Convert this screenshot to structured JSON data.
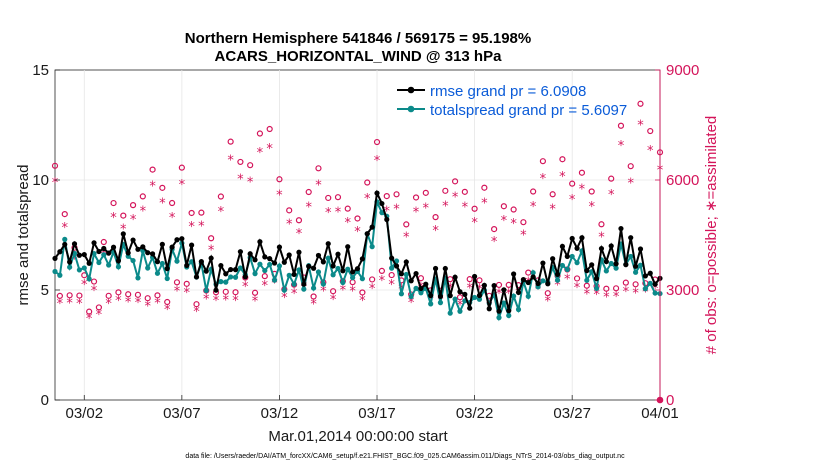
{
  "chart_data": {
    "type": "line",
    "title_line1": "Northern Hemisphere 541846 / 569175 = 95.198%",
    "title_line2": "ACARS_HORIZONTAL_WIND @ 313 hPa",
    "xlabel": "Mar.01,2014 00:00:00 start",
    "ylabel_left": "rmse and totalspread",
    "ylabel_right": "# of obs: o=possible; ∗=assimilated",
    "footnote": "data file: /Users/raeder/DAI/ATM_forcXX/CAM6_setup/f.e21.FHIST_BGC.f09_025.CAM6assim.011/Diags_NTrS_2014-03/obs_diag_output.nc",
    "xlim": [
      0.5,
      31.5
    ],
    "ylim_left": [
      0,
      15
    ],
    "ylim_right": [
      0,
      9000
    ],
    "x_tick_labels": [
      "03/02",
      "03/07",
      "03/12",
      "03/17",
      "03/22",
      "03/27",
      "04/01"
    ],
    "x_tick_values": [
      2,
      7,
      12,
      17,
      22,
      27,
      32
    ],
    "y_left_ticks": [
      "0",
      "5",
      "10",
      "15"
    ],
    "y_left_tick_values": [
      0,
      5,
      10,
      15
    ],
    "y_right_ticks": [
      "0",
      "3000",
      "6000",
      "9000"
    ],
    "y_right_tick_values": [
      0,
      3000,
      6000,
      9000
    ],
    "colors": {
      "rmse": "#000000",
      "spread": "#0b8a8a",
      "obs": "#d4145a",
      "legend_text": "#0a5bd8"
    },
    "series": [
      {
        "name": "rmse grand pr = 6.0908",
        "color": "#000000",
        "anchors_x": [
          0.5,
          1.0,
          2.0,
          3.0,
          4.0,
          5.0,
          6.0,
          6.8,
          7.5,
          8.0,
          9.0,
          10.0,
          11.0,
          12.0,
          13.0,
          14.0,
          15.0,
          16.0,
          16.8,
          17.2,
          17.8,
          18.5,
          19.5,
          20.5,
          21.5,
          22.5,
          23.5,
          24.5,
          25.5,
          26.5,
          27.0,
          28.0,
          28.8,
          29.5,
          30.5,
          31.0,
          31.5
        ],
        "anchors_y": [
          6.3,
          7.1,
          6.4,
          6.8,
          7.2,
          6.7,
          6.3,
          7.5,
          6.3,
          6.0,
          5.7,
          6.1,
          6.6,
          6.3,
          6.0,
          6.2,
          6.5,
          6.0,
          8.4,
          9.3,
          6.4,
          5.6,
          5.2,
          5.2,
          4.9,
          4.9,
          4.6,
          5.3,
          5.8,
          6.3,
          7.2,
          6.0,
          6.4,
          7.0,
          6.4,
          5.6,
          5.2
        ]
      },
      {
        "name": "totalspread grand pr = 5.6097",
        "color": "#0b8a8a",
        "anchors_x": [
          0.5,
          1.0,
          2.0,
          3.0,
          4.0,
          5.0,
          6.0,
          6.8,
          7.5,
          8.0,
          9.0,
          10.0,
          11.0,
          12.0,
          13.0,
          14.0,
          15.0,
          16.0,
          16.8,
          17.2,
          17.8,
          18.5,
          19.5,
          20.5,
          21.5,
          22.5,
          23.5,
          24.5,
          25.5,
          26.5,
          27.0,
          28.0,
          28.8,
          29.5,
          30.5,
          31.0,
          31.5
        ],
        "anchors_y": [
          5.8,
          6.6,
          5.9,
          6.3,
          6.6,
          6.1,
          5.6,
          6.9,
          5.8,
          5.5,
          5.2,
          5.6,
          6.0,
          5.7,
          5.4,
          5.6,
          5.9,
          5.5,
          7.8,
          9.5,
          5.8,
          5.0,
          4.8,
          4.8,
          4.5,
          4.5,
          4.3,
          4.9,
          5.4,
          5.8,
          6.6,
          5.6,
          5.9,
          6.4,
          5.9,
          5.1,
          4.9
        ]
      }
    ],
    "obs_counts": {
      "possible_anchors_x": [
        0.5,
        1.5,
        2.5,
        3.5,
        4.5,
        5.5,
        6.5,
        7.0,
        7.5,
        8.5,
        9.5,
        10.5,
        11.0,
        12.0,
        13.0,
        14.0,
        15.0,
        16.0,
        16.7,
        17.0,
        17.5,
        18.5,
        19.5,
        20.5,
        21.0,
        22.0,
        23.0,
        24.0,
        25.0,
        26.0,
        26.5,
        27.5,
        28.5,
        29.5,
        30.0,
        30.5,
        31.0,
        31.5
      ],
      "possible_anchors_y": [
        5800,
        4200,
        3200,
        4800,
        5400,
        6200,
        5600,
        7200,
        5200,
        4500,
        6400,
        5800,
        7800,
        6000,
        5400,
        5800,
        6000,
        5600,
        7000,
        7500,
        5800,
        5400,
        5400,
        5800,
        6300,
        5400,
        5100,
        4900,
        5700,
        6100,
        6000,
        5600,
        5400,
        6800,
        5700,
        7600,
        8100,
        6400
      ],
      "possible_low_anchors_y": [
        3200,
        2700,
        2500,
        3300,
        3100,
        2800,
        3000,
        3300,
        2800,
        3100,
        3000,
        3100,
        3200,
        3300,
        3100,
        3000,
        2900,
        3200,
        3300,
        3400,
        3100,
        3100,
        3200,
        3100,
        3100,
        3100,
        3000,
        2900,
        3300,
        3200,
        3300,
        3300,
        3000,
        3100,
        3000,
        3100,
        3000,
        3200
      ],
      "assimilated_ratio": 0.93
    },
    "legend": {
      "rmse": "rmse grand pr = 6.0908",
      "spread": "totalspread grand pr = 5.6097"
    }
  }
}
